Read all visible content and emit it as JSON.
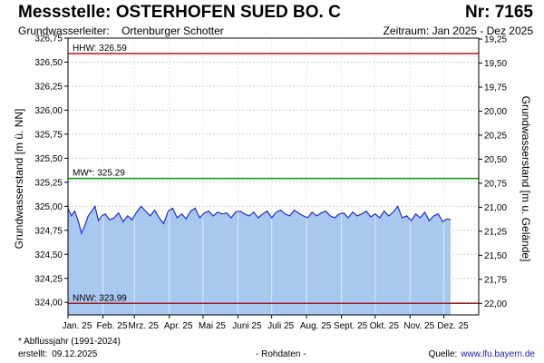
{
  "header": {
    "title": "Messstelle: OSTERHOFEN SUED BO. C",
    "nr": "Nr: 7165",
    "aquifer_label": "Grundwasserleiter:",
    "aquifer_value": "Ortenburger Schotter",
    "period": "Zeitraum: Jan 2025 - Dez 2025"
  },
  "footer": {
    "note": "* Abflussjahr (1991-2024)",
    "created_label": "erstellt:",
    "created_value": "09.12.2025",
    "rawdata": "- Rohdaten -",
    "source_label": "Quelle:",
    "source_value": "www.lfu.bayern.de"
  },
  "colors": {
    "area_fill": "#a9c8ee",
    "line": "#1c2ed8",
    "hhw_line": "#e60000",
    "mw_line": "#1e8a1e",
    "nnw_line": "#e60000",
    "grid": "#d0d0d0"
  },
  "chart_data": {
    "type": "area",
    "ylabel": "Grundwasserstand [m ü. NN]",
    "y2label": "Grundwasserstand [m u. Gelände]",
    "ylim": [
      323.87,
      326.75
    ],
    "y_ticks": [
      "326,75",
      "326,50",
      "326,25",
      "326,00",
      "325,75",
      "325,50",
      "325,25",
      "325,00",
      "324,75",
      "324,50",
      "324,25",
      "324,00"
    ],
    "y_tick_values": [
      326.75,
      326.5,
      326.25,
      326.0,
      325.75,
      325.5,
      325.25,
      325.0,
      324.75,
      324.5,
      324.25,
      324.0
    ],
    "y2_ticks": [
      "19,25",
      "19,50",
      "19,75",
      "20,00",
      "20,25",
      "20,50",
      "20,75",
      "21,00",
      "21,25",
      "21,50",
      "21,75",
      "22,00"
    ],
    "y2_tick_values": [
      19.25,
      19.5,
      19.75,
      20.0,
      20.25,
      20.5,
      20.75,
      21.0,
      21.25,
      21.5,
      21.75,
      22.0
    ],
    "ground_level": 345.99,
    "x_range": [
      "2025-01-01",
      "2026-01-01"
    ],
    "x_ticks": [
      "Jan. 25",
      "Feb. 25",
      "Mrz. 25",
      "Apr. 25",
      "Mai 25",
      "Juni 25",
      "Juli 25",
      "Aug. 25",
      "Sept. 25",
      "Okt. 25",
      "Nov. 25",
      "Dez. 25"
    ],
    "x_tick_dates": [
      "2025-01-01",
      "2025-02-01",
      "2025-03-01",
      "2025-04-01",
      "2025-05-01",
      "2025-06-01",
      "2025-07-01",
      "2025-08-01",
      "2025-09-01",
      "2025-10-01",
      "2025-11-01",
      "2025-12-01"
    ],
    "grid": true,
    "reference_lines": [
      {
        "label": "HHW: 326.59",
        "value": 326.59,
        "color": "#e60000"
      },
      {
        "label": "MW*: 325.29",
        "value": 325.29,
        "color": "#1e8a1e"
      },
      {
        "label": "NNW: 323.99",
        "value": 323.99,
        "color": "#e60000"
      }
    ],
    "series": [
      {
        "x": [
          "2025-01-01",
          "2025-01-04",
          "2025-01-07",
          "2025-01-10",
          "2025-01-13",
          "2025-01-16",
          "2025-01-19",
          "2025-01-22",
          "2025-01-25",
          "2025-01-28",
          "2025-01-31",
          "2025-02-03",
          "2025-02-07",
          "2025-02-11",
          "2025-02-15",
          "2025-02-19",
          "2025-02-23",
          "2025-02-27",
          "2025-03-03",
          "2025-03-07",
          "2025-03-11",
          "2025-03-15",
          "2025-03-19",
          "2025-03-23",
          "2025-03-27",
          "2025-03-31",
          "2025-04-04",
          "2025-04-08",
          "2025-04-12",
          "2025-04-16",
          "2025-04-20",
          "2025-04-24",
          "2025-04-28",
          "2025-05-02",
          "2025-05-06",
          "2025-05-10",
          "2025-05-14",
          "2025-05-18",
          "2025-05-22",
          "2025-05-26",
          "2025-05-30",
          "2025-06-03",
          "2025-06-07",
          "2025-06-11",
          "2025-06-15",
          "2025-06-19",
          "2025-06-23",
          "2025-06-27",
          "2025-07-01",
          "2025-07-05",
          "2025-07-09",
          "2025-07-13",
          "2025-07-17",
          "2025-07-21",
          "2025-07-25",
          "2025-07-29",
          "2025-08-02",
          "2025-08-06",
          "2025-08-10",
          "2025-08-14",
          "2025-08-18",
          "2025-08-22",
          "2025-08-26",
          "2025-08-30",
          "2025-09-03",
          "2025-09-07",
          "2025-09-11",
          "2025-09-15",
          "2025-09-19",
          "2025-09-23",
          "2025-09-27",
          "2025-10-01",
          "2025-10-05",
          "2025-10-09",
          "2025-10-13",
          "2025-10-17",
          "2025-10-21",
          "2025-10-25",
          "2025-10-29",
          "2025-11-02",
          "2025-11-06",
          "2025-11-10",
          "2025-11-14",
          "2025-11-18",
          "2025-11-22",
          "2025-11-26",
          "2025-11-30",
          "2025-12-04",
          "2025-12-07"
        ],
        "values": [
          324.98,
          324.9,
          324.95,
          324.85,
          324.72,
          324.8,
          324.9,
          324.95,
          325.0,
          324.85,
          324.9,
          324.92,
          324.86,
          324.88,
          324.93,
          324.84,
          324.9,
          324.86,
          324.94,
          325.0,
          324.95,
          324.9,
          324.96,
          324.88,
          324.82,
          324.95,
          324.98,
          324.88,
          324.92,
          324.87,
          324.95,
          324.98,
          324.88,
          324.93,
          324.95,
          324.9,
          324.94,
          324.92,
          324.93,
          324.88,
          324.94,
          324.95,
          324.92,
          324.9,
          324.94,
          324.88,
          324.92,
          324.95,
          324.88,
          324.94,
          324.96,
          324.92,
          324.9,
          324.96,
          324.93,
          324.9,
          324.88,
          324.94,
          324.9,
          324.93,
          324.95,
          324.9,
          324.88,
          324.92,
          324.93,
          324.88,
          324.94,
          324.9,
          324.92,
          324.95,
          324.89,
          324.92,
          324.88,
          324.95,
          324.9,
          324.94,
          325.0,
          324.88,
          324.9,
          324.85,
          324.92,
          324.88,
          324.94,
          324.85,
          324.9,
          324.92,
          324.84,
          324.87,
          324.86
        ]
      }
    ]
  }
}
